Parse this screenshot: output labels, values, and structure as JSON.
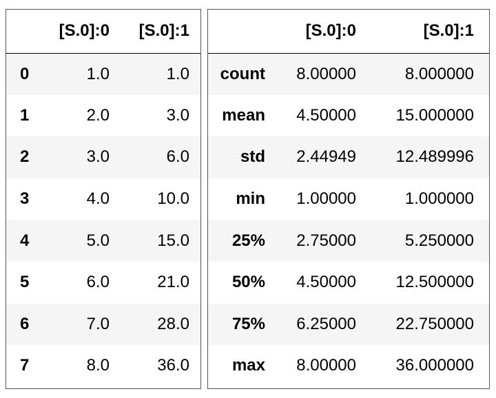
{
  "left_table": {
    "columns": [
      "[S.0]:0",
      "[S.0]:1"
    ],
    "rows": [
      {
        "index": "0",
        "values": [
          "1.0",
          "1.0"
        ]
      },
      {
        "index": "1",
        "values": [
          "2.0",
          "3.0"
        ]
      },
      {
        "index": "2",
        "values": [
          "3.0",
          "6.0"
        ]
      },
      {
        "index": "3",
        "values": [
          "4.0",
          "10.0"
        ]
      },
      {
        "index": "4",
        "values": [
          "5.0",
          "15.0"
        ]
      },
      {
        "index": "5",
        "values": [
          "6.0",
          "21.0"
        ]
      },
      {
        "index": "6",
        "values": [
          "7.0",
          "28.0"
        ]
      },
      {
        "index": "7",
        "values": [
          "8.0",
          "36.0"
        ]
      }
    ]
  },
  "right_table": {
    "columns": [
      "[S.0]:0",
      "[S.0]:1"
    ],
    "rows": [
      {
        "index": "count",
        "values": [
          "8.00000",
          "8.000000"
        ]
      },
      {
        "index": "mean",
        "values": [
          "4.50000",
          "15.000000"
        ]
      },
      {
        "index": "std",
        "values": [
          "2.44949",
          "12.489996"
        ]
      },
      {
        "index": "min",
        "values": [
          "1.00000",
          "1.000000"
        ]
      },
      {
        "index": "25%",
        "values": [
          "2.75000",
          "5.250000"
        ]
      },
      {
        "index": "50%",
        "values": [
          "4.50000",
          "12.500000"
        ]
      },
      {
        "index": "75%",
        "values": [
          "6.25000",
          "22.750000"
        ]
      },
      {
        "index": "max",
        "values": [
          "8.00000",
          "36.000000"
        ]
      }
    ]
  }
}
